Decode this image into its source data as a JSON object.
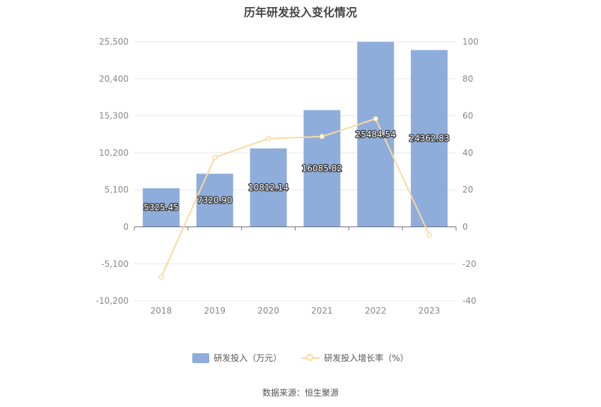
{
  "title": "历年研发投入变化情况",
  "source_label": "数据来源：恒生聚源",
  "colors": {
    "bar": "#8eadda",
    "line": "#fcd9a0",
    "grid": "#e4e7ef",
    "axis_text": "#888888"
  },
  "chart_data": {
    "type": "bar",
    "title": "历年研发投入变化情况",
    "categories": [
      "2018",
      "2019",
      "2020",
      "2021",
      "2022",
      "2023"
    ],
    "series": [
      {
        "name": "研发投入（万元）",
        "type": "bar",
        "axis": "left",
        "values": [
          5325.45,
          7320.9,
          10812.14,
          16085.82,
          25484.54,
          24362.83
        ],
        "labels": [
          "5325.45",
          "7320.90",
          "10812.14",
          "16085.82",
          "25484.54",
          "24362.83"
        ]
      },
      {
        "name": "研发投入增长率（%）",
        "type": "line",
        "axis": "right",
        "values": [
          -27.2,
          37.5,
          47.7,
          48.8,
          58.4,
          -4.4
        ]
      }
    ],
    "y_left": {
      "ylim": [
        -10200,
        25500
      ],
      "ticks": [
        25500,
        20400,
        15300,
        10200,
        5100,
        0,
        -5100,
        -10200
      ],
      "tick_labels": [
        "25,500",
        "20,400",
        "15,300",
        "10,200",
        "5,100",
        "0",
        "-5,100",
        "-10,200"
      ]
    },
    "y_right": {
      "ylim": [
        -40,
        100
      ],
      "ticks": [
        100,
        80,
        60,
        40,
        20,
        0,
        -20,
        -40
      ],
      "tick_labels": [
        "100",
        "80",
        "60",
        "40",
        "20",
        "0",
        "-20",
        "-40"
      ]
    },
    "grid": true,
    "legend_position": "bottom"
  }
}
